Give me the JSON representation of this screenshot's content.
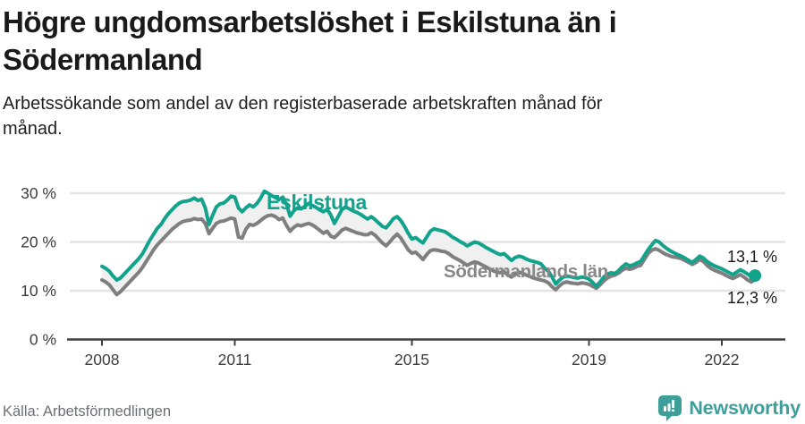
{
  "title": {
    "line1": "Högre ungdomsarbetslöshet i Eskilstuna än i",
    "line2": "Södermanland"
  },
  "subtitle": {
    "line1": "Arbetssökande som andel av den registerbaserade arbetskraften månad för",
    "line2": "månad."
  },
  "footer": {
    "source": "Källa: Arbetsförmedlingen",
    "logo_text": "Newsworthy"
  },
  "colors": {
    "accent_teal": "#13a28c",
    "series_gray": "#7f7f7f",
    "series_gray_label": "#888888",
    "between_fill": "#f0f0f0",
    "gridline": "#e3e3e3",
    "axis": "#3f3f3f",
    "tick_text": "#3d3d3d",
    "value_label_text": "#1a1a1a",
    "logo_teal": "#3e9e9a"
  },
  "chart_data": {
    "type": "line",
    "x_unit": "month",
    "x_start": "2008-01",
    "x_end": "2022-10",
    "ylim": [
      0,
      32
    ],
    "grid": "horizontal",
    "legend_position": "inline-labels",
    "y_ticks": [
      {
        "value": 30,
        "label": "30 %"
      },
      {
        "value": 20,
        "label": "20 %"
      },
      {
        "value": 10,
        "label": "10 %"
      },
      {
        "value": 0,
        "label": "0 %"
      }
    ],
    "x_ticks": [
      {
        "label": "2008",
        "month_index": 0
      },
      {
        "label": "2011",
        "month_index": 36
      },
      {
        "label": "2015",
        "month_index": 84
      },
      {
        "label": "2019",
        "month_index": 132
      },
      {
        "label": "2022",
        "month_index": 168
      }
    ],
    "series": [
      {
        "name": "Eskilstuna",
        "end_label": "13,1 %",
        "end_value": 13.1,
        "values": [
          15.0,
          14.6,
          14.0,
          13.0,
          12.2,
          12.6,
          13.4,
          14.2,
          15.0,
          15.8,
          16.6,
          17.6,
          19.0,
          20.4,
          21.6,
          22.8,
          23.6,
          24.8,
          25.8,
          26.6,
          27.4,
          28.0,
          28.3,
          28.4,
          28.6,
          29.0,
          28.5,
          28.8,
          27.0,
          23.6,
          25.5,
          27.2,
          27.8,
          28.0,
          28.6,
          29.4,
          29.2,
          27.0,
          26.2,
          27.0,
          27.6,
          27.2,
          27.9,
          29.0,
          30.4,
          30.0,
          29.5,
          29.1,
          28.7,
          29.2,
          27.8,
          25.3,
          26.4,
          27.0,
          26.8,
          27.3,
          27.9,
          27.5,
          27.1,
          26.6,
          26.2,
          26.7,
          25.6,
          23.8,
          25.2,
          26.6,
          27.2,
          26.8,
          26.4,
          26.1,
          25.7,
          25.2,
          24.7,
          25.2,
          24.6,
          23.9,
          23.2,
          22.9,
          23.8,
          24.8,
          25.2,
          24.4,
          23.2,
          21.8,
          20.6,
          20.9,
          20.3,
          19.8,
          21.0,
          22.2,
          22.7,
          22.5,
          22.3,
          22.1,
          21.6,
          21.0,
          20.6,
          20.1,
          19.7,
          19.2,
          19.6,
          20.0,
          19.8,
          19.4,
          18.9,
          18.5,
          18.1,
          17.7,
          17.4,
          17.6,
          16.9,
          16.2,
          16.8,
          17.1,
          16.9,
          16.5,
          16.2,
          16.0,
          15.8,
          15.5,
          14.6,
          14.0,
          12.8,
          11.4,
          12.2,
          12.8,
          13.0,
          12.9,
          12.7,
          12.6,
          12.8,
          12.7,
          12.4,
          11.7,
          10.9,
          11.8,
          12.8,
          13.4,
          13.7,
          13.5,
          14.1,
          14.9,
          15.5,
          15.1,
          15.3,
          15.7,
          16.0,
          17.2,
          18.4,
          19.4,
          20.3,
          20.0,
          19.3,
          18.7,
          18.2,
          17.8,
          17.4,
          17.1,
          16.7,
          16.2,
          15.8,
          16.4,
          17.1,
          16.7,
          16.0,
          15.5,
          15.1,
          14.8,
          14.5,
          14.1,
          13.7,
          13.3,
          13.8,
          14.3,
          13.9,
          13.4,
          12.9,
          13.1
        ]
      },
      {
        "name": "Södermanlands län",
        "end_label": "12,3 %",
        "end_value": 12.3,
        "values": [
          12.2,
          11.8,
          11.2,
          10.2,
          9.2,
          9.8,
          10.6,
          11.4,
          12.2,
          13.0,
          13.8,
          14.8,
          16.0,
          17.2,
          18.4,
          19.4,
          20.2,
          21.0,
          21.8,
          22.6,
          23.2,
          23.8,
          24.2,
          24.4,
          24.5,
          24.8,
          24.6,
          24.7,
          23.8,
          21.7,
          22.8,
          23.8,
          24.2,
          24.3,
          24.6,
          24.9,
          24.7,
          21.0,
          20.8,
          22.6,
          23.6,
          23.4,
          23.8,
          24.4,
          25.0,
          25.4,
          25.5,
          25.2,
          24.6,
          24.9,
          23.4,
          22.2,
          23.0,
          23.5,
          23.3,
          23.6,
          23.8,
          23.5,
          23.0,
          22.4,
          21.8,
          22.2,
          21.2,
          20.9,
          21.6,
          22.4,
          22.8,
          22.5,
          22.2,
          21.9,
          21.7,
          21.5,
          21.5,
          21.9,
          21.4,
          20.6,
          19.8,
          19.2,
          20.0,
          20.9,
          21.6,
          20.8,
          19.6,
          18.4,
          17.7,
          17.9,
          17.2,
          16.4,
          17.4,
          18.2,
          18.4,
          18.3,
          18.1,
          18.0,
          17.6,
          17.0,
          16.6,
          16.2,
          15.7,
          15.2,
          15.6,
          15.9,
          15.7,
          15.3,
          14.9,
          14.5,
          14.1,
          13.8,
          13.7,
          13.9,
          13.2,
          12.8,
          13.4,
          13.8,
          13.6,
          13.2,
          12.9,
          12.6,
          12.4,
          12.2,
          12.0,
          11.6,
          10.8,
          10.2,
          11.0,
          11.6,
          11.8,
          11.6,
          11.5,
          11.4,
          11.6,
          11.5,
          11.3,
          10.9,
          10.5,
          11.2,
          12.0,
          12.6,
          13.0,
          13.2,
          13.6,
          14.2,
          14.6,
          14.4,
          14.6,
          15.0,
          15.2,
          16.4,
          17.6,
          18.3,
          18.6,
          18.3,
          17.8,
          17.4,
          17.1,
          16.9,
          16.8,
          16.6,
          16.2,
          15.8,
          15.4,
          15.8,
          16.4,
          16.0,
          15.2,
          14.6,
          14.2,
          13.9,
          13.6,
          13.2,
          12.8,
          12.5,
          12.9,
          13.3,
          12.8,
          12.2,
          11.8,
          12.3
        ]
      }
    ]
  }
}
